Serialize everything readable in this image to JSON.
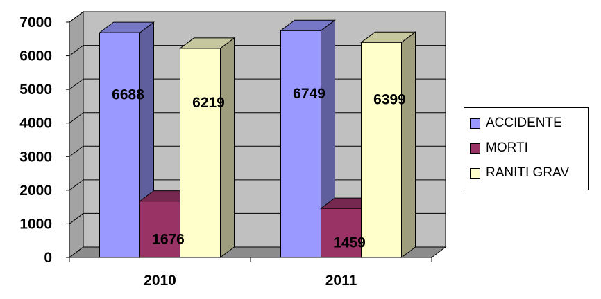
{
  "chart_data": {
    "type": "bar",
    "categories": [
      "2010",
      "2011"
    ],
    "series": [
      {
        "name": "ACCIDENTE",
        "values": [
          6688,
          6749
        ],
        "color": "#9999ff"
      },
      {
        "name": "MORTI",
        "values": [
          1676,
          1459
        ],
        "color": "#993366"
      },
      {
        "name": "RANITI GRAV",
        "values": [
          6219,
          6399
        ],
        "color": "#ffffcc"
      }
    ],
    "yticks": [
      "0",
      "1000",
      "2000",
      "3000",
      "4000",
      "5000",
      "6000",
      "7000"
    ],
    "ylim": [
      0,
      7000
    ],
    "grid": true,
    "three_d": true,
    "wall_color": "#c0c0c0",
    "legend_position": "right",
    "title": "",
    "xlabel": "",
    "ylabel": ""
  }
}
